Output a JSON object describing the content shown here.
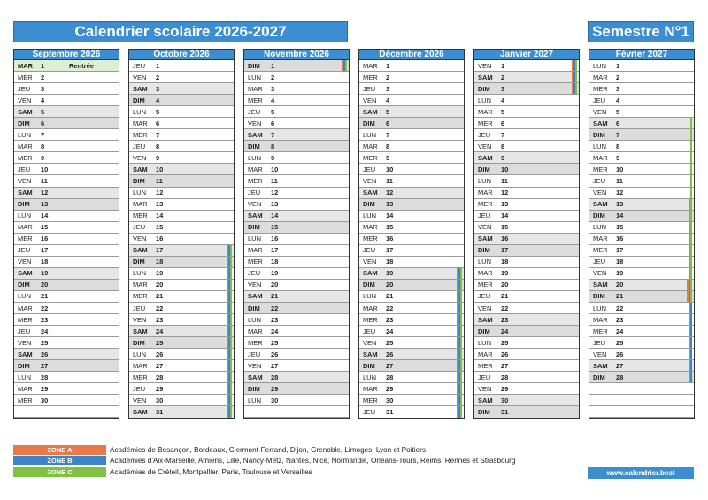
{
  "title": "Calendrier scolaire 2026-2027",
  "semester": "Semestre N°1",
  "zone_colors": {
    "A": "#e8794a",
    "B": "#3d86c6",
    "C": "#7fc142"
  },
  "months": [
    {
      "name": "Septembre 2026",
      "start": 1,
      "days": 30,
      "notes": {
        "1": "Rentrée"
      },
      "zones": {}
    },
    {
      "name": "Octobre 2026",
      "start": 3,
      "days": 31,
      "notes": {},
      "zones": {
        "17": [
          "A",
          "B",
          "C"
        ],
        "18": [
          "A",
          "B",
          "C"
        ],
        "19": [
          "A",
          "B",
          "C"
        ],
        "20": [
          "A",
          "B",
          "C"
        ],
        "21": [
          "A",
          "B",
          "C"
        ],
        "22": [
          "A",
          "B",
          "C"
        ],
        "23": [
          "A",
          "B",
          "C"
        ],
        "24": [
          "A",
          "B",
          "C"
        ],
        "25": [
          "A",
          "B",
          "C"
        ],
        "26": [
          "A",
          "B",
          "C"
        ],
        "27": [
          "A",
          "B",
          "C"
        ],
        "28": [
          "A",
          "B",
          "C"
        ],
        "29": [
          "A",
          "B",
          "C"
        ],
        "30": [
          "A",
          "B",
          "C"
        ],
        "31": [
          "A",
          "B",
          "C"
        ]
      }
    },
    {
      "name": "Novembre 2026",
      "start": 6,
      "days": 30,
      "notes": {},
      "zones": {
        "1": [
          "A",
          "B",
          "C"
        ]
      }
    },
    {
      "name": "Décembre 2026",
      "start": 1,
      "days": 31,
      "notes": {},
      "zones": {
        "19": [
          "A",
          "B",
          "C"
        ],
        "20": [
          "A",
          "B",
          "C"
        ],
        "21": [
          "A",
          "B",
          "C"
        ],
        "22": [
          "A",
          "B",
          "C"
        ],
        "23": [
          "A",
          "B",
          "C"
        ],
        "24": [
          "A",
          "B",
          "C"
        ],
        "25": [
          "A",
          "B",
          "C"
        ],
        "26": [
          "A",
          "B",
          "C"
        ],
        "27": [
          "A",
          "B",
          "C"
        ],
        "28": [
          "A",
          "B",
          "C"
        ],
        "29": [
          "A",
          "B",
          "C"
        ],
        "30": [
          "A",
          "B",
          "C"
        ],
        "31": [
          "A",
          "B",
          "C"
        ]
      }
    },
    {
      "name": "Janvier 2027",
      "start": 4,
      "days": 31,
      "notes": {},
      "zones": {
        "1": [
          "A",
          "B",
          "C"
        ],
        "2": [
          "A",
          "B",
          "C"
        ],
        "3": [
          "A",
          "B",
          "C"
        ]
      }
    },
    {
      "name": "Février 2027",
      "start": 0,
      "days": 28,
      "notes": {},
      "zones": {
        "6": [
          "C"
        ],
        "7": [
          "C"
        ],
        "8": [
          "C"
        ],
        "9": [
          "C"
        ],
        "10": [
          "C"
        ],
        "11": [
          "C"
        ],
        "12": [
          "C"
        ],
        "13": [
          "A",
          "C"
        ],
        "14": [
          "A",
          "C"
        ],
        "15": [
          "A",
          "C"
        ],
        "16": [
          "A",
          "C"
        ],
        "17": [
          "A",
          "C"
        ],
        "18": [
          "A",
          "C"
        ],
        "19": [
          "A",
          "C"
        ],
        "20": [
          "A",
          "B",
          "C"
        ],
        "21": [
          "A",
          "B",
          "C"
        ],
        "22": [
          "A",
          "B"
        ],
        "23": [
          "A",
          "B"
        ],
        "24": [
          "A",
          "B"
        ],
        "25": [
          "A",
          "B"
        ],
        "26": [
          "A",
          "B"
        ],
        "27": [
          "A",
          "B"
        ],
        "28": [
          "A",
          "B"
        ]
      }
    }
  ],
  "weekdays": [
    "LUN",
    "MAR",
    "MER",
    "JEU",
    "VEN",
    "SAM",
    "DIM"
  ],
  "legend": [
    {
      "zone": "ZONE A",
      "color": "#e8794a",
      "text": "Académies de Besançon, Bordeaux, Clermont-Ferrand, Dijon, Grenoble, Limoges, Lyon et Poitiers"
    },
    {
      "zone": "ZONE B",
      "color": "#3d86c6",
      "text": "Académies d'Aix-Marseille, Amiens, Lille, Nancy-Metz, Nantes, Nice, Normandie, Orléans-Tours, Reims, Rennes et Strasbourg"
    },
    {
      "zone": "ZONE C",
      "color": "#7fc142",
      "text": "Académies de Créteil, Montpellier, Paris, Toulouse et Versailles"
    }
  ],
  "website": "www.calendrier.best"
}
